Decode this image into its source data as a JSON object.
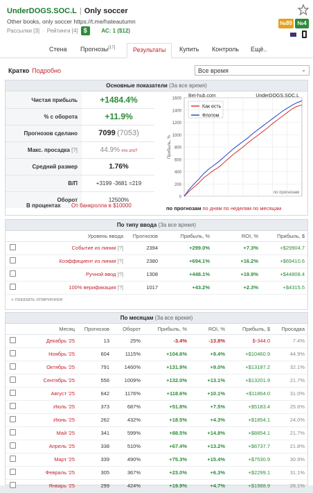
{
  "header": {
    "name": "UnderDOGS.SOC.L",
    "sep": "|",
    "desc": "Only soccer",
    "subtitle": "Other books, only soccer https://t.me/hateautumn",
    "mailings": "Рассылки [3]",
    "ratings": "Рейтинги [4]",
    "dollar": "$",
    "ac": "АС: 1 ($12)",
    "badge1": "№89",
    "badge2": "№4"
  },
  "tabs": [
    {
      "label": "Стена"
    },
    {
      "label": "Прогнозы",
      "sup": "[17]"
    },
    {
      "label": "Результаты"
    },
    {
      "label": "Купить"
    },
    {
      "label": "Контроль"
    },
    {
      "label": "Ещё.."
    }
  ],
  "brief": {
    "label": "Кратко",
    "link": "Подробно",
    "period": "Все время"
  },
  "main": {
    "title": "Основные показатели",
    "period": "(За все время)",
    "rows": [
      {
        "k": "Чистая прибыль",
        "v": "+1484.4%"
      },
      {
        "k": "% с оборота",
        "v": "+11.9%"
      },
      {
        "k": "Прогнозов сделано",
        "v": "7099",
        "v2": "(7053)"
      },
      {
        "k": "Макс. просадка",
        "q": "[?]",
        "v": "44.9%",
        "note": "что это?"
      },
      {
        "k": "Средний размер",
        "v": "1.76%"
      },
      {
        "k": "В/П",
        "v": "+3199 -3681 =219"
      },
      {
        "k": "Оборот",
        "v": "12500%"
      }
    ],
    "inpercent": "В процентах",
    "frombank": "От банкролла в $10000"
  },
  "chart_data": {
    "type": "line",
    "title": "UnderDOGS.SOC.L",
    "brand": "Bet-hub.com",
    "ylabel": "Прибыль, %",
    "xlabel": "по прогнозам",
    "ylim": [
      0,
      1600
    ],
    "yticks": [
      0,
      200,
      400,
      600,
      800,
      1000,
      1200,
      1400,
      1600
    ],
    "series": [
      {
        "name": "Как есть",
        "color": "#d32f2f",
        "values": [
          0,
          80,
          150,
          220,
          300,
          360,
          420,
          470,
          540,
          610,
          680,
          740,
          800,
          870,
          930,
          990,
          1050,
          1110,
          1180,
          1240,
          1300,
          1360,
          1420,
          1460,
          1484
        ]
      },
      {
        "name": "Флэтом",
        "color": "#1f3fbf",
        "values": [
          0,
          110,
          200,
          280,
          370,
          440,
          500,
          560,
          630,
          700,
          770,
          830,
          890,
          950,
          1020,
          1080,
          1140,
          1200,
          1260,
          1320,
          1380,
          1430,
          1480,
          1520,
          1550
        ]
      }
    ],
    "links": {
      "bets": "по прогнозам",
      "days": "по дням",
      "weeks": "по неделям",
      "months": "по месяцам"
    }
  },
  "bytype": {
    "title": "По типу ввода",
    "period": "(За все время)",
    "headers": [
      "Уровень ввода",
      "Прогнозов",
      "Прибыль, %",
      "ROI, %",
      "Прибыль, $"
    ],
    "rows": [
      {
        "name": "Событие из линии",
        "q": "[?]",
        "n": "2394",
        "p": "+299.0%",
        "roi": "+7.3%",
        "usd": "+$29904.7"
      },
      {
        "name": "Коэффициент из линии",
        "q": "[?]",
        "n": "2380",
        "p": "+694.1%",
        "roi": "+16.2%",
        "usd": "+$69410.6"
      },
      {
        "name": "Ручной ввод",
        "q": "[?]",
        "n": "1308",
        "p": "+448.1%",
        "roi": "+19.9%",
        "usd": "+$44808.4"
      },
      {
        "name": "100% верификация",
        "q": "[?]",
        "n": "1017",
        "p": "+43.2%",
        "roi": "+2.3%",
        "usd": "+$4315.5"
      }
    ],
    "show": "» показать отмеченное"
  },
  "bymonth": {
    "title": "По месяцам",
    "period": "(За все время)",
    "headers": [
      "Месяц",
      "Прогнозов",
      "Оборот",
      "Прибыль, %",
      "ROI, %",
      "Прибыль, $",
      "Просадка"
    ],
    "rows": [
      {
        "m": "Декабрь '25",
        "n": "13",
        "o": "25%",
        "p": "-3.4%",
        "roi": "-13.8%",
        "usd": "$-344.0",
        "d": "7.4%"
      },
      {
        "m": "Ноябрь '25",
        "n": "604",
        "o": "1115%",
        "p": "+104.6%",
        "roi": "+9.4%",
        "usd": "+$10460.9",
        "d": "44.9%"
      },
      {
        "m": "Октябрь '25",
        "n": "791",
        "o": "1460%",
        "p": "+131.9%",
        "roi": "+9.0%",
        "usd": "+$13187.2",
        "d": "32.1%"
      },
      {
        "m": "Сентябрь '25",
        "n": "556",
        "o": "1009%",
        "p": "+132.0%",
        "roi": "+13.1%",
        "usd": "+$13201.9",
        "d": "21.7%"
      },
      {
        "m": "Август '25",
        "n": "642",
        "o": "1176%",
        "p": "+118.6%",
        "roi": "+10.1%",
        "usd": "+$11864.0",
        "d": "31.0%"
      },
      {
        "m": "Июль '25",
        "n": "373",
        "o": "687%",
        "p": "+51.8%",
        "roi": "+7.5%",
        "usd": "+$5183.4",
        "d": "25.6%"
      },
      {
        "m": "Июнь '25",
        "n": "262",
        "o": "432%",
        "p": "+18.5%",
        "roi": "+4.3%",
        "usd": "+$1854.1",
        "d": "24.0%"
      },
      {
        "m": "Май '25",
        "n": "341",
        "o": "599%",
        "p": "+88.5%",
        "roi": "+14.8%",
        "usd": "+$8854.1",
        "d": "21.7%"
      },
      {
        "m": "Апрель '25",
        "n": "338",
        "o": "510%",
        "p": "+67.4%",
        "roi": "+13.2%",
        "usd": "+$6737.7",
        "d": "21.8%"
      },
      {
        "m": "Март '25",
        "n": "339",
        "o": "490%",
        "p": "+75.3%",
        "roi": "+15.4%",
        "usd": "+$7530.9",
        "d": "30.9%"
      },
      {
        "m": "Февраль '25",
        "n": "305",
        "o": "367%",
        "p": "+23.0%",
        "roi": "+6.3%",
        "usd": "+$2299.1",
        "d": "31.1%"
      },
      {
        "m": "Январь '25",
        "n": "299",
        "o": "424%",
        "p": "+19.9%",
        "roi": "+4.7%",
        "usd": "+$1988.9",
        "d": "26.1%"
      }
    ]
  }
}
